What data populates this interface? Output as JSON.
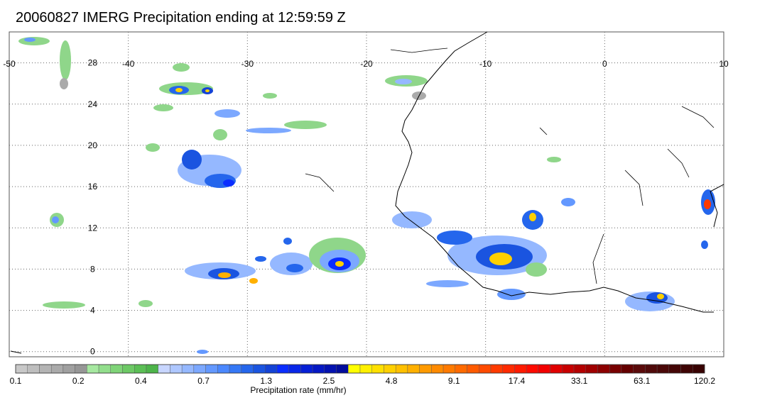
{
  "title": "20060827 IMERG Precipitation ending at 12:59:59 Z",
  "map": {
    "lon_range": [
      -50,
      10
    ],
    "lat_range": [
      -0.5,
      31
    ],
    "lon_ticks": [
      "-50",
      "-40",
      "-30",
      "-20",
      "-10",
      "0",
      "10"
    ],
    "lat_ticks": [
      "0",
      "4",
      "8",
      "12",
      "16",
      "20",
      "24",
      "28"
    ],
    "gridlines": "dotted",
    "colors": {
      "coastline": "#000000",
      "frame": "#555555",
      "grid": "#666666"
    }
  },
  "colorbar": {
    "label": "Precipitation rate (mm/hr)",
    "tick_labels": [
      "0.1",
      "0.2",
      "0.4",
      "0.7",
      "1.3",
      "2.5",
      "4.8",
      "9.1",
      "17.4",
      "33.1",
      "63.1",
      "120.2"
    ],
    "colors": [
      "#c8c8c8",
      "#bebebe",
      "#b4b4b4",
      "#aaaaaa",
      "#a0a0a0",
      "#969696",
      "#a6e8a0",
      "#92de8c",
      "#7fd478",
      "#6dc965",
      "#5bbf55",
      "#4db44a",
      "#c8d6ff",
      "#aec7ff",
      "#95b8ff",
      "#7ca8ff",
      "#6398ff",
      "#4b88ff",
      "#3578f6",
      "#2566ec",
      "#1a54e0",
      "#1443d6",
      "#0a2dff",
      "#0826e8",
      "#061fd6",
      "#0518c4",
      "#0412b0",
      "#030d9c",
      "#ffff00",
      "#fff000",
      "#ffe000",
      "#ffd000",
      "#ffc000",
      "#ffb000",
      "#ff9a00",
      "#ff8a00",
      "#ff7a00",
      "#ff6a00",
      "#ff5a00",
      "#ff4a00",
      "#ff3a00",
      "#ff2a00",
      "#ff1a00",
      "#ff0a00",
      "#f20000",
      "#e00000",
      "#c80000",
      "#b40000",
      "#a00000",
      "#8c0000",
      "#780000",
      "#640000",
      "#5a0a0a",
      "#500a0a",
      "#4a0808",
      "#440606",
      "#3e0404",
      "#380202"
    ]
  }
}
